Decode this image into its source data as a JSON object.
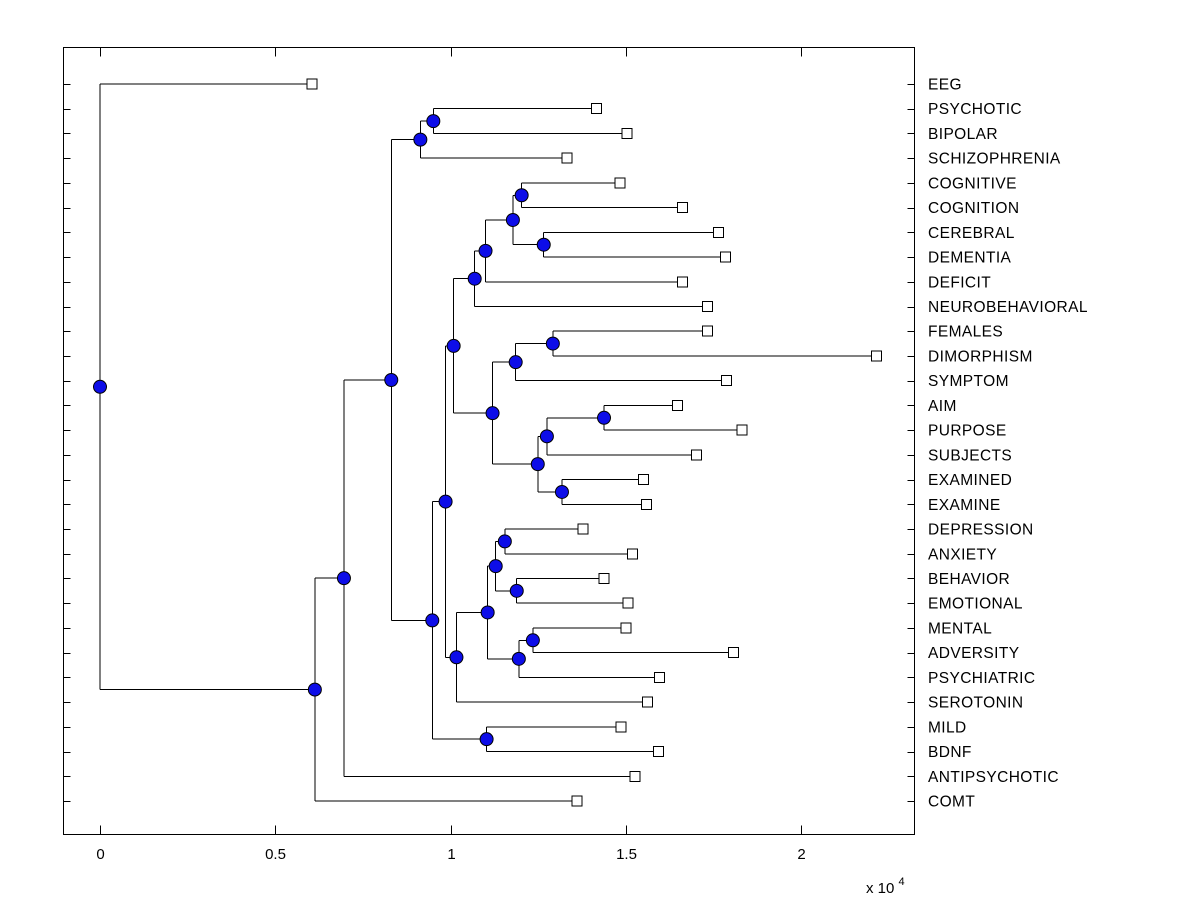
{
  "figure": {
    "background": "#ffffff"
  },
  "chart_data": {
    "type": "dendrogram",
    "orientation": "left-to-right",
    "title": "",
    "axis": {
      "x_ticks": [
        0,
        0.5,
        1,
        1.5,
        2
      ],
      "x_tick_labels": [
        "0",
        "0.5",
        "1",
        "1.5",
        "2"
      ],
      "x_multiplier_base": "x 10",
      "x_multiplier_exponent": "4",
      "x_units": "1e4",
      "grid": false,
      "box": true
    },
    "colors": {
      "branch": "#000000",
      "node_fill": "#0d0de8",
      "node_edge": "#000000",
      "leaf_fill": "#ffffff",
      "leaf_edge": "#000000",
      "background": "#ffffff",
      "text": "#000000"
    },
    "leaves": [
      {
        "label": "EEG",
        "tip": 0.605
      },
      {
        "label": "PSYCHOTIC",
        "tip": 1.416
      },
      {
        "label": "BIPOLAR",
        "tip": 1.504
      },
      {
        "label": "SCHIZOPHRENIA",
        "tip": 1.332
      },
      {
        "label": "COGNITIVE",
        "tip": 1.484
      },
      {
        "label": "COGNITION",
        "tip": 1.662
      },
      {
        "label": "CEREBRAL",
        "tip": 1.765
      },
      {
        "label": "DEMENTIA",
        "tip": 1.785
      },
      {
        "label": "DEFICIT",
        "tip": 1.662
      },
      {
        "label": "NEUROBEHAVIORAL",
        "tip": 1.733
      },
      {
        "label": "FEMALES",
        "tip": 1.733
      },
      {
        "label": "DIMORPHISM",
        "tip": 2.215
      },
      {
        "label": "SYMPTOM",
        "tip": 1.788
      },
      {
        "label": "AIM",
        "tip": 1.648
      },
      {
        "label": "PURPOSE",
        "tip": 1.831
      },
      {
        "label": "SUBJECTS",
        "tip": 1.702
      },
      {
        "label": "EXAMINED",
        "tip": 1.55
      },
      {
        "label": "EXAMINE",
        "tip": 1.559
      },
      {
        "label": "DEPRESSION",
        "tip": 1.378
      },
      {
        "label": "ANXIETY",
        "tip": 1.519
      },
      {
        "label": "BEHAVIOR",
        "tip": 1.438
      },
      {
        "label": "EMOTIONAL",
        "tip": 1.507
      },
      {
        "label": "MENTAL",
        "tip": 1.501
      },
      {
        "label": "ADVERSITY",
        "tip": 1.808
      },
      {
        "label": "PSYCHIATRIC",
        "tip": 1.596
      },
      {
        "label": "SEROTONIN",
        "tip": 1.562
      },
      {
        "label": "MILD",
        "tip": 1.487
      },
      {
        "label": "BDNF",
        "tip": 1.593
      },
      {
        "label": "ANTIPSYCHOTIC",
        "tip": 1.527
      },
      {
        "label": "COMT",
        "tip": 1.361
      }
    ],
    "internal_nodes": [
      {
        "id": "S2",
        "x": 0.951,
        "children": [
          "PSYCHOTIC",
          "BIPOLAR"
        ]
      },
      {
        "id": "S1",
        "x": 0.914,
        "children": [
          "S2",
          "SCHIZOPHRENIA"
        ]
      },
      {
        "id": "A",
        "x": 1.203,
        "children": [
          "COGNITIVE",
          "COGNITION"
        ]
      },
      {
        "id": "C",
        "x": 1.266,
        "children": [
          "CEREBRAL",
          "DEMENTIA"
        ]
      },
      {
        "id": "B",
        "x": 1.178,
        "children": [
          "A",
          "C"
        ]
      },
      {
        "id": "D",
        "x": 1.1,
        "children": [
          "B",
          "DEFICIT"
        ]
      },
      {
        "id": "E",
        "x": 1.069,
        "children": [
          "D",
          "NEUROBEHAVIORAL"
        ]
      },
      {
        "id": "F",
        "x": 1.292,
        "children": [
          "FEMALES",
          "DIMORPHISM"
        ]
      },
      {
        "id": "G",
        "x": 1.186,
        "children": [
          "F",
          "SYMPTOM"
        ]
      },
      {
        "id": "L",
        "x": 1.438,
        "children": [
          "AIM",
          "PURPOSE"
        ]
      },
      {
        "id": "M",
        "x": 1.275,
        "children": [
          "L",
          "SUBJECTS"
        ]
      },
      {
        "id": "N",
        "x": 1.318,
        "children": [
          "EXAMINED",
          "EXAMINE"
        ]
      },
      {
        "id": "K",
        "x": 1.249,
        "children": [
          "M",
          "N"
        ]
      },
      {
        "id": "J",
        "x": 1.12,
        "children": [
          "G",
          "K"
        ]
      },
      {
        "id": "W",
        "x": 1.009,
        "children": [
          "E",
          "J"
        ]
      },
      {
        "id": "P1",
        "x": 1.155,
        "children": [
          "DEPRESSION",
          "ANXIETY"
        ]
      },
      {
        "id": "P3",
        "x": 1.189,
        "children": [
          "BEHAVIOR",
          "EMOTIONAL"
        ]
      },
      {
        "id": "P2",
        "x": 1.129,
        "children": [
          "P1",
          "P3"
        ]
      },
      {
        "id": "P6",
        "x": 1.235,
        "children": [
          "MENTAL",
          "ADVERSITY"
        ]
      },
      {
        "id": "P5",
        "x": 1.195,
        "children": [
          "P6",
          "PSYCHIATRIC"
        ]
      },
      {
        "id": "P4",
        "x": 1.106,
        "children": [
          "P2",
          "P5"
        ]
      },
      {
        "id": "Q",
        "x": 1.017,
        "children": [
          "P4",
          "SEROTONIN"
        ]
      },
      {
        "id": "V",
        "x": 0.986,
        "children": [
          "W",
          "Q"
        ]
      },
      {
        "id": "N2",
        "x": 1.103,
        "children": [
          "MILD",
          "BDNF"
        ]
      },
      {
        "id": "N1",
        "x": 0.948,
        "children": [
          "V",
          "N2"
        ]
      },
      {
        "id": "B3",
        "x": 0.831,
        "children": [
          "S1",
          "N1"
        ]
      },
      {
        "id": "B2",
        "x": 0.696,
        "children": [
          "B3",
          "ANTIPSYCHOTIC"
        ]
      },
      {
        "id": "B1",
        "x": 0.613,
        "children": [
          "B2",
          "COMT"
        ]
      },
      {
        "id": "root",
        "x": 0.0,
        "children": [
          "EEG",
          "B1"
        ]
      }
    ],
    "root_id": "root"
  }
}
